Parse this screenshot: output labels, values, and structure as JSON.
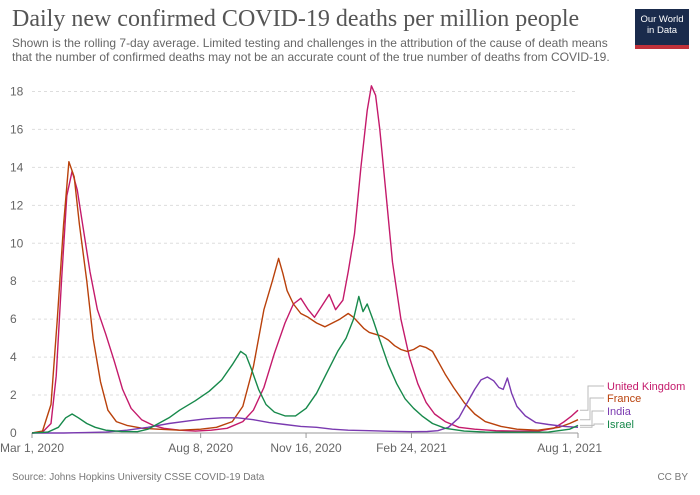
{
  "header": {
    "title": "Daily new confirmed COVID-19 deaths per million people",
    "subtitle": "Shown is the rolling 7-day average. Limited testing and challenges in the attribution of the cause of death means that the number of confirmed deaths may not be an accurate count of the true number of deaths from COVID-19.",
    "logo_line1": "Our World",
    "logo_line2": "in Data"
  },
  "footer": {
    "source": "Source: Johns Hopkins University CSSE COVID-19 Data",
    "license": "CC BY"
  },
  "colors": {
    "united_kingdom": "#c41a6b",
    "france": "#b9410b",
    "india": "#7a3ab0",
    "israel": "#17894b",
    "grid": "#dddddd"
  },
  "chart_data": {
    "type": "line",
    "title": "Daily new confirmed COVID-19 deaths per million people",
    "xlabel": "",
    "ylabel": "",
    "x_range_days": [
      0,
      518
    ],
    "ylim": [
      0,
      18.5
    ],
    "y_ticks": [
      0,
      2,
      4,
      6,
      8,
      10,
      12,
      14,
      16,
      18
    ],
    "x_ticks": [
      {
        "label": "Mar 1, 2020",
        "day": 0
      },
      {
        "label": "Aug 8, 2020",
        "day": 160
      },
      {
        "label": "Nov 16, 2020",
        "day": 260
      },
      {
        "label": "Feb 24, 2021",
        "day": 360
      },
      {
        "label": "Aug 1, 2021",
        "day": 518
      }
    ],
    "grid": "horizontal dashed",
    "series": [
      {
        "name": "United Kingdom",
        "key": "united_kingdom",
        "points": [
          [
            0,
            0
          ],
          [
            10,
            0.05
          ],
          [
            18,
            0.5
          ],
          [
            23,
            3
          ],
          [
            28,
            8
          ],
          [
            33,
            12.5
          ],
          [
            38,
            13.8
          ],
          [
            43,
            12.8
          ],
          [
            48,
            11
          ],
          [
            55,
            8.5
          ],
          [
            62,
            6.5
          ],
          [
            70,
            5.2
          ],
          [
            78,
            3.8
          ],
          [
            86,
            2.3
          ],
          [
            94,
            1.3
          ],
          [
            104,
            0.7
          ],
          [
            115,
            0.4
          ],
          [
            125,
            0.25
          ],
          [
            140,
            0.15
          ],
          [
            155,
            0.1
          ],
          [
            170,
            0.15
          ],
          [
            185,
            0.25
          ],
          [
            200,
            0.6
          ],
          [
            210,
            1.2
          ],
          [
            220,
            2.4
          ],
          [
            230,
            4.2
          ],
          [
            240,
            5.8
          ],
          [
            248,
            6.8
          ],
          [
            255,
            7.1
          ],
          [
            262,
            6.5
          ],
          [
            268,
            6.1
          ],
          [
            275,
            6.7
          ],
          [
            282,
            7.3
          ],
          [
            288,
            6.5
          ],
          [
            295,
            7
          ],
          [
            300,
            8.5
          ],
          [
            306,
            10.5
          ],
          [
            312,
            14
          ],
          [
            318,
            17
          ],
          [
            322,
            18.3
          ],
          [
            326,
            17.8
          ],
          [
            330,
            16
          ],
          [
            336,
            12.5
          ],
          [
            342,
            9
          ],
          [
            350,
            6
          ],
          [
            358,
            4
          ],
          [
            366,
            2.6
          ],
          [
            374,
            1.6
          ],
          [
            382,
            1
          ],
          [
            392,
            0.6
          ],
          [
            405,
            0.3
          ],
          [
            420,
            0.2
          ],
          [
            440,
            0.12
          ],
          [
            460,
            0.1
          ],
          [
            480,
            0.1
          ],
          [
            495,
            0.25
          ],
          [
            505,
            0.6
          ],
          [
            512,
            0.9
          ],
          [
            518,
            1.2
          ]
        ]
      },
      {
        "name": "France",
        "key": "france",
        "points": [
          [
            0,
            0
          ],
          [
            10,
            0.1
          ],
          [
            18,
            1.5
          ],
          [
            24,
            6
          ],
          [
            30,
            11
          ],
          [
            35,
            14.3
          ],
          [
            40,
            13.5
          ],
          [
            45,
            11
          ],
          [
            52,
            8
          ],
          [
            58,
            5
          ],
          [
            65,
            2.7
          ],
          [
            72,
            1.2
          ],
          [
            80,
            0.6
          ],
          [
            90,
            0.4
          ],
          [
            105,
            0.25
          ],
          [
            120,
            0.2
          ],
          [
            140,
            0.15
          ],
          [
            160,
            0.2
          ],
          [
            175,
            0.3
          ],
          [
            190,
            0.6
          ],
          [
            200,
            1.4
          ],
          [
            210,
            3.5
          ],
          [
            220,
            6.5
          ],
          [
            228,
            8
          ],
          [
            234,
            9.2
          ],
          [
            238,
            8.4
          ],
          [
            242,
            7.5
          ],
          [
            248,
            6.8
          ],
          [
            255,
            6.3
          ],
          [
            262,
            6.1
          ],
          [
            270,
            5.8
          ],
          [
            278,
            5.6
          ],
          [
            285,
            5.8
          ],
          [
            292,
            6
          ],
          [
            300,
            6.3
          ],
          [
            305,
            6.1
          ],
          [
            310,
            5.8
          ],
          [
            315,
            5.5
          ],
          [
            320,
            5.3
          ],
          [
            326,
            5.2
          ],
          [
            332,
            5.1
          ],
          [
            338,
            4.9
          ],
          [
            344,
            4.6
          ],
          [
            350,
            4.4
          ],
          [
            356,
            4.3
          ],
          [
            362,
            4.4
          ],
          [
            368,
            4.6
          ],
          [
            374,
            4.5
          ],
          [
            380,
            4.3
          ],
          [
            386,
            3.7
          ],
          [
            392,
            3.1
          ],
          [
            400,
            2.4
          ],
          [
            410,
            1.6
          ],
          [
            420,
            1
          ],
          [
            430,
            0.6
          ],
          [
            445,
            0.35
          ],
          [
            460,
            0.2
          ],
          [
            480,
            0.15
          ],
          [
            500,
            0.3
          ],
          [
            510,
            0.5
          ],
          [
            518,
            0.7
          ]
        ]
      },
      {
        "name": "India",
        "key": "india",
        "points": [
          [
            0,
            0
          ],
          [
            30,
            0
          ],
          [
            50,
            0.02
          ],
          [
            70,
            0.05
          ],
          [
            90,
            0.15
          ],
          [
            110,
            0.3
          ],
          [
            130,
            0.5
          ],
          [
            150,
            0.65
          ],
          [
            165,
            0.75
          ],
          [
            180,
            0.8
          ],
          [
            195,
            0.8
          ],
          [
            210,
            0.7
          ],
          [
            225,
            0.55
          ],
          [
            240,
            0.45
          ],
          [
            255,
            0.35
          ],
          [
            270,
            0.3
          ],
          [
            285,
            0.2
          ],
          [
            300,
            0.15
          ],
          [
            320,
            0.12
          ],
          [
            340,
            0.09
          ],
          [
            360,
            0.07
          ],
          [
            375,
            0.08
          ],
          [
            385,
            0.12
          ],
          [
            395,
            0.3
          ],
          [
            405,
            0.8
          ],
          [
            413,
            1.6
          ],
          [
            420,
            2.3
          ],
          [
            426,
            2.8
          ],
          [
            432,
            2.95
          ],
          [
            438,
            2.75
          ],
          [
            443,
            2.4
          ],
          [
            447,
            2.3
          ],
          [
            451,
            2.9
          ],
          [
            455,
            2.1
          ],
          [
            460,
            1.4
          ],
          [
            468,
            0.9
          ],
          [
            478,
            0.55
          ],
          [
            490,
            0.45
          ],
          [
            505,
            0.35
          ],
          [
            518,
            0.3
          ]
        ]
      },
      {
        "name": "Israel",
        "key": "israel",
        "points": [
          [
            0,
            0
          ],
          [
            15,
            0.05
          ],
          [
            25,
            0.3
          ],
          [
            32,
            0.8
          ],
          [
            38,
            1
          ],
          [
            44,
            0.8
          ],
          [
            52,
            0.5
          ],
          [
            60,
            0.3
          ],
          [
            70,
            0.15
          ],
          [
            85,
            0.08
          ],
          [
            100,
            0.07
          ],
          [
            110,
            0.2
          ],
          [
            120,
            0.5
          ],
          [
            130,
            0.8
          ],
          [
            140,
            1.2
          ],
          [
            155,
            1.7
          ],
          [
            168,
            2.2
          ],
          [
            180,
            2.8
          ],
          [
            190,
            3.6
          ],
          [
            198,
            4.3
          ],
          [
            203,
            4.1
          ],
          [
            208,
            3.4
          ],
          [
            215,
            2.3
          ],
          [
            222,
            1.5
          ],
          [
            230,
            1.1
          ],
          [
            240,
            0.9
          ],
          [
            250,
            0.9
          ],
          [
            260,
            1.3
          ],
          [
            270,
            2.1
          ],
          [
            280,
            3.2
          ],
          [
            290,
            4.3
          ],
          [
            298,
            5
          ],
          [
            305,
            6
          ],
          [
            310,
            7.2
          ],
          [
            314,
            6.4
          ],
          [
            318,
            6.8
          ],
          [
            324,
            5.9
          ],
          [
            330,
            4.9
          ],
          [
            338,
            3.6
          ],
          [
            346,
            2.6
          ],
          [
            354,
            1.8
          ],
          [
            362,
            1.3
          ],
          [
            370,
            0.9
          ],
          [
            380,
            0.5
          ],
          [
            392,
            0.25
          ],
          [
            410,
            0.1
          ],
          [
            430,
            0.05
          ],
          [
            460,
            0.04
          ],
          [
            490,
            0.05
          ],
          [
            510,
            0.2
          ],
          [
            518,
            0.4
          ]
        ]
      }
    ]
  }
}
